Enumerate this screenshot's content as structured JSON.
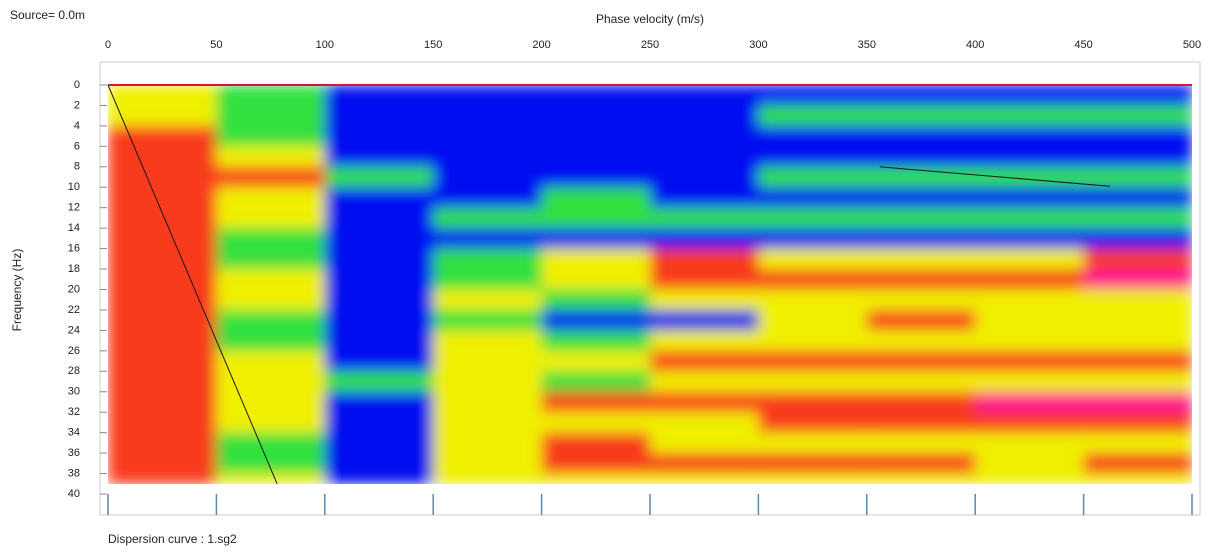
{
  "chart_data": {
    "type": "heatmap",
    "subtitle": "Source=  0.0m",
    "x_label": "Phase velocity (m/s)",
    "y_label": "Frequency (Hz)",
    "footer": "Dispersion curve : 1.sg2",
    "xlim": [
      0,
      500
    ],
    "ylim": [
      0,
      40
    ],
    "xticks": [
      0,
      50,
      100,
      150,
      200,
      250,
      300,
      350,
      400,
      450,
      500
    ],
    "yticks": [
      0,
      2,
      4,
      6,
      8,
      10,
      12,
      14,
      16,
      18,
      20,
      22,
      24,
      26,
      28,
      30,
      32,
      34,
      36,
      38,
      40
    ],
    "x_bins": [
      0,
      50,
      100,
      150,
      200,
      250,
      300,
      350,
      400,
      450,
      500
    ],
    "y_bins": [
      0,
      2,
      4,
      6,
      8,
      10,
      12,
      14,
      16,
      18,
      20,
      22,
      24,
      26,
      28,
      30,
      32,
      34,
      36,
      38,
      39
    ],
    "colorscale": [
      "#0010f0",
      "#30e040",
      "#f0f000",
      "#f83a1c",
      "#ff0a90"
    ],
    "z": [
      [
        2,
        1,
        0,
        0,
        0,
        0,
        0,
        0,
        0,
        0
      ],
      [
        2,
        1,
        0,
        0,
        0,
        0,
        1,
        1,
        1,
        1
      ],
      [
        3,
        1,
        0,
        0,
        0,
        0,
        0,
        0,
        0,
        0
      ],
      [
        3,
        2,
        0,
        0,
        0,
        0,
        0,
        0,
        0,
        0
      ],
      [
        3,
        3,
        1,
        0,
        0,
        0,
        1,
        1,
        1,
        1
      ],
      [
        3,
        2,
        0,
        0,
        1,
        0,
        0,
        0,
        0,
        0
      ],
      [
        3,
        2,
        0,
        1,
        1,
        1,
        1,
        1,
        1,
        1
      ],
      [
        3,
        1,
        0,
        0,
        0,
        0,
        0,
        0,
        0,
        0
      ],
      [
        3,
        1,
        0,
        1,
        2,
        3,
        2,
        2,
        2,
        3
      ],
      [
        3,
        2,
        0,
        1,
        2,
        3,
        3,
        3,
        3,
        4
      ],
      [
        3,
        2,
        0,
        2,
        1,
        2,
        2,
        2,
        2,
        2
      ],
      [
        3,
        1,
        0,
        1,
        0,
        0,
        2,
        3,
        2,
        2
      ],
      [
        3,
        1,
        0,
        2,
        1,
        2,
        2,
        2,
        2,
        2
      ],
      [
        3,
        2,
        0,
        2,
        2,
        3,
        3,
        3,
        3,
        3
      ],
      [
        3,
        2,
        1,
        2,
        1,
        2,
        2,
        2,
        2,
        2
      ],
      [
        3,
        2,
        0,
        2,
        3,
        3,
        3,
        3,
        4,
        4
      ],
      [
        3,
        2,
        0,
        2,
        2,
        2,
        3,
        3,
        3,
        3
      ],
      [
        3,
        1,
        0,
        2,
        3,
        2,
        2,
        2,
        2,
        2
      ],
      [
        3,
        1,
        0,
        2,
        3,
        3,
        3,
        3,
        2,
        3
      ],
      [
        3,
        2,
        0,
        2,
        2,
        2,
        2,
        2,
        2,
        2
      ]
    ],
    "curves": [
      {
        "color": "#1a1a1a",
        "x": [
          0,
          78
        ],
        "y": [
          0,
          39
        ]
      },
      {
        "color": "#1a1a1a",
        "x": [
          356,
          462
        ],
        "y": [
          8,
          9.9
        ]
      }
    ]
  }
}
